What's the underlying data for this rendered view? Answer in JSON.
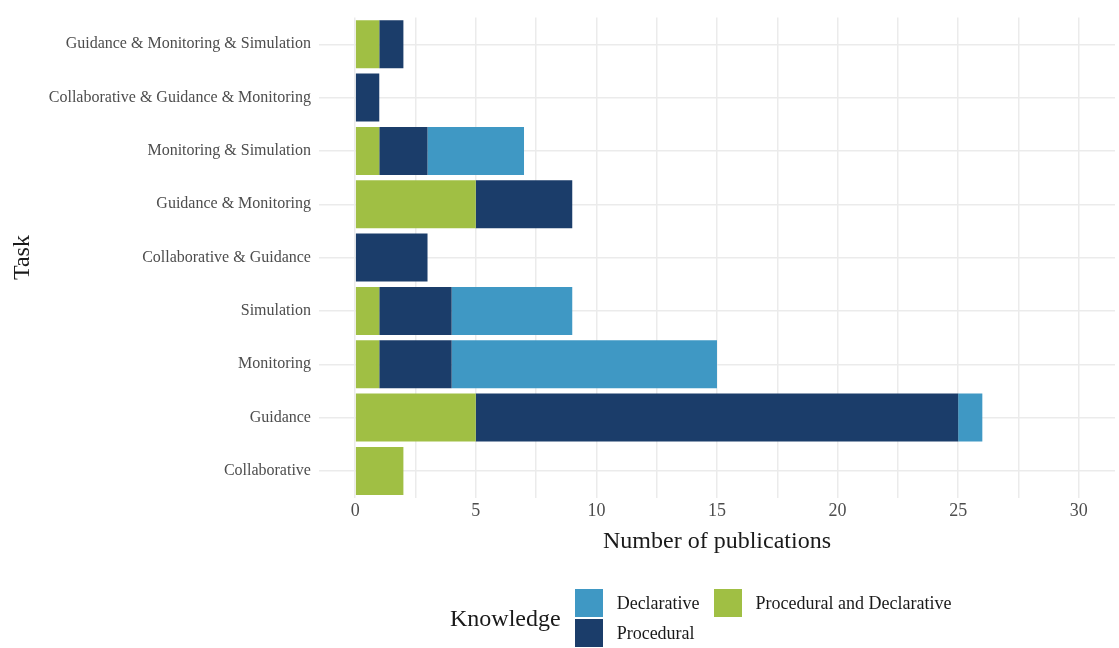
{
  "chart_data": {
    "type": "bar",
    "orientation": "horizontal",
    "stacked": true,
    "xlabel": "Number of publications",
    "ylabel": "Task",
    "legend_title": "Knowledge",
    "legend": "bottom",
    "grid": true,
    "categories": [
      "Guidance & Monitoring & Simulation",
      "Collaborative & Guidance & Monitoring",
      "Monitoring & Simulation",
      "Guidance & Monitoring",
      "Collaborative & Guidance",
      "Simulation",
      "Monitoring",
      "Guidance",
      "Collaborative"
    ],
    "series": [
      {
        "name": "Procedural and Declarative",
        "color": "#a0bf44",
        "values": [
          1,
          null,
          1,
          5,
          null,
          1,
          1,
          5,
          2
        ]
      },
      {
        "name": "Procedural",
        "color": "#1b3d6a",
        "values": [
          1,
          1,
          2,
          4,
          3,
          3,
          3,
          20,
          null
        ]
      },
      {
        "name": "Declarative",
        "color": "#3f98c4",
        "values": [
          null,
          null,
          4,
          null,
          null,
          5,
          11,
          1,
          null
        ]
      }
    ],
    "xlim": [
      -1.5,
      31.5
    ],
    "xticks": [
      0,
      {
        "value": 2.5,
        "label": null
      },
      5,
      {
        "value": 7.5,
        "label": null
      },
      10,
      {
        "value": 12.5,
        "label": null
      },
      15,
      {
        "value": 17.5,
        "label": null
      },
      20,
      {
        "value": 22.5,
        "label": null
      },
      25,
      {
        "value": 27.5,
        "label": null
      },
      30
    ]
  }
}
